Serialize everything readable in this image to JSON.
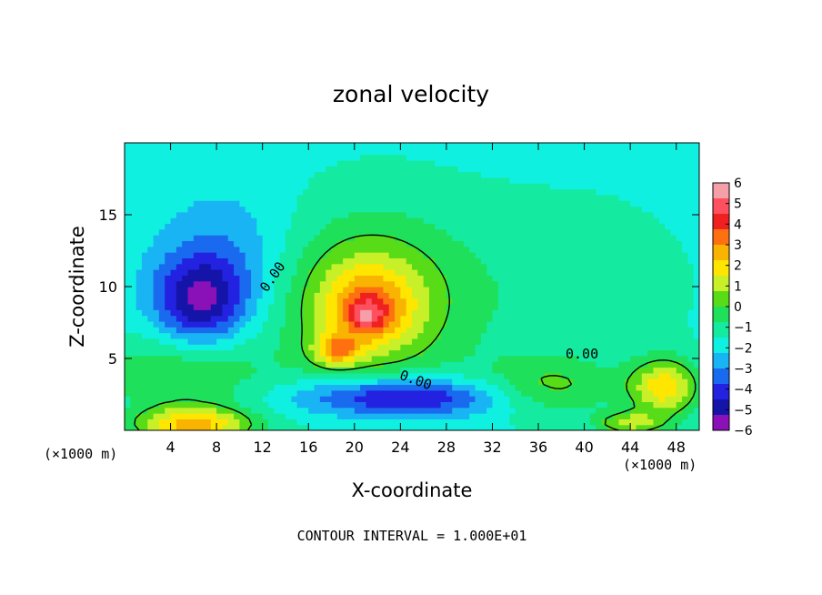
{
  "chart_data": {
    "type": "heatmap",
    "title": "zonal velocity",
    "xlabel": "X-coordinate",
    "ylabel": "Z-coordinate",
    "x_unit_left": "(×1000 m)",
    "x_unit_right": "(×1000 m)",
    "footer": "CONTOUR INTERVAL = 1.000E+01",
    "xlim": [
      0,
      50
    ],
    "ylim": [
      0,
      20
    ],
    "x_ticks": [
      4,
      8,
      12,
      16,
      20,
      24,
      28,
      32,
      36,
      40,
      44,
      48
    ],
    "y_ticks": [
      5,
      10,
      15
    ],
    "contour_labels": [
      {
        "text": "0.00",
        "x": 13.2,
        "y": 10.5
      },
      {
        "text": "0.00",
        "x": 39.8,
        "y": 5.0
      },
      {
        "text": "0.00",
        "x": 25.2,
        "y": 3.2
      }
    ],
    "colorbar": {
      "min": -6,
      "max": 6,
      "ticks": [
        "6",
        "5",
        "4",
        "3",
        "2",
        "1",
        "0",
        "−1",
        "−2",
        "−3",
        "−4",
        "−5",
        "−6"
      ],
      "colors": [
        "#f5a0a8",
        "#ff5060",
        "#f02020",
        "#ff7010",
        "#f8b400",
        "#ffe600",
        "#c8f028",
        "#58dc18",
        "#1ee05a",
        "#14eaa0",
        "#10f0e0",
        "#19b4f4",
        "#1a6af0",
        "#2222e0",
        "#1414a8",
        "#8a10b8"
      ]
    },
    "field": {
      "background": -1.7,
      "blobs": [
        {
          "x": 22,
          "y": 9,
          "rx": 11,
          "ry": 7,
          "v": 1.5
        },
        {
          "x": 21,
          "y": 9,
          "rx": 6,
          "ry": 4.5,
          "v": 2.0
        },
        {
          "x": 21.5,
          "y": 8.5,
          "rx": 3.5,
          "ry": 2.5,
          "v": 2.0
        },
        {
          "x": 18.5,
          "y": 5.6,
          "rx": 2,
          "ry": 1.1,
          "v": 3.0
        },
        {
          "x": 21,
          "y": 8,
          "rx": 1.6,
          "ry": 1.1,
          "v": 2.0
        },
        {
          "x": 6.5,
          "y": 9,
          "rx": 4,
          "ry": 3.2,
          "v": -3.4
        },
        {
          "x": 9,
          "y": 12,
          "rx": 6,
          "ry": 5,
          "v": -1.3
        },
        {
          "x": 5,
          "y": 4,
          "rx": 7,
          "ry": 3,
          "v": 1.8
        },
        {
          "x": 6,
          "y": 0.4,
          "rx": 5,
          "ry": 1.2,
          "v": 4.0
        },
        {
          "x": 24,
          "y": 2.3,
          "rx": 9,
          "ry": 1.4,
          "v": -3.5
        },
        {
          "x": 37,
          "y": 3,
          "rx": 6,
          "ry": 2,
          "v": 1.8
        },
        {
          "x": 47,
          "y": 3,
          "rx": 3,
          "ry": 2,
          "v": 3.6
        },
        {
          "x": 44,
          "y": 0.5,
          "rx": 3,
          "ry": 0.8,
          "v": 2.5
        },
        {
          "x": 40,
          "y": 10,
          "rx": 9,
          "ry": 6,
          "v": 0.6
        }
      ],
      "contour_level": 0
    }
  }
}
